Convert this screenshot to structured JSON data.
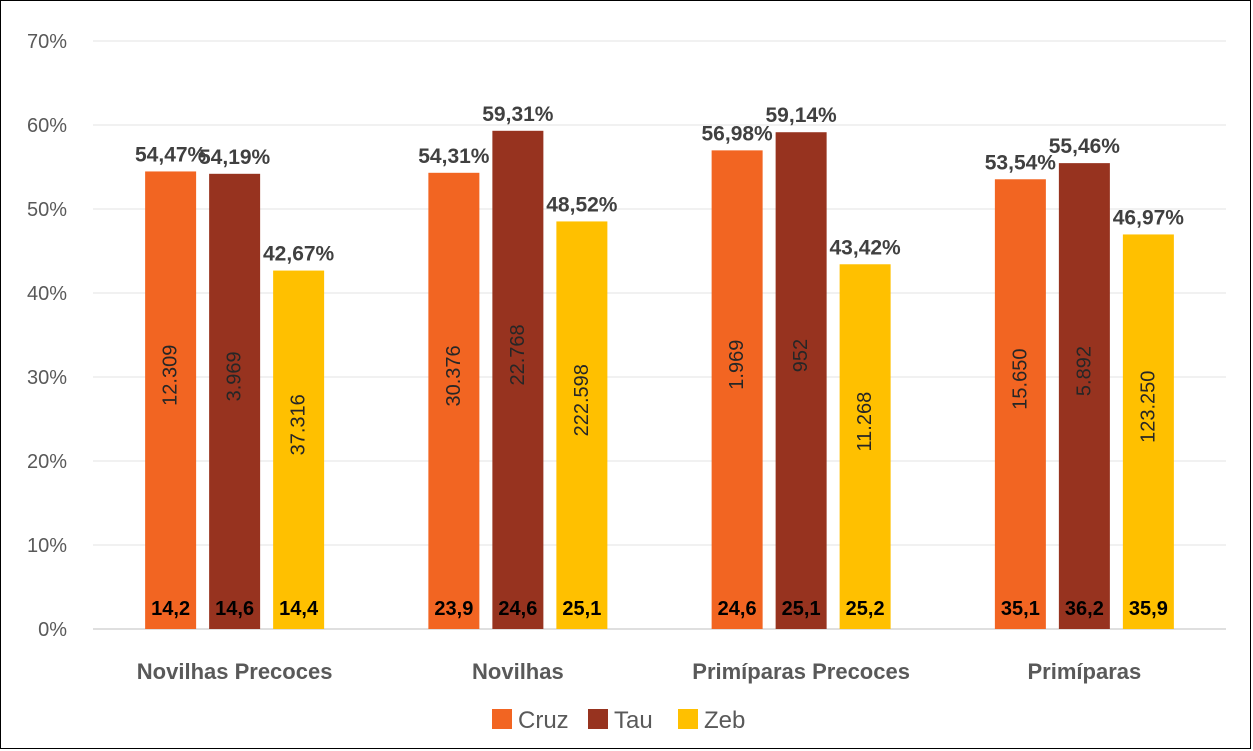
{
  "chart_data": {
    "type": "bar",
    "categories": [
      "Novilhas Precoces",
      "Novilhas",
      "Primíparas Precoces",
      "Primíparas"
    ],
    "ylim": [
      0,
      70
    ],
    "yticks": [
      "0%",
      "10%",
      "20%",
      "30%",
      "40%",
      "50%",
      "60%",
      "70%"
    ],
    "grid": true,
    "legend_position": "bottom",
    "series": [
      {
        "name": "Cruz",
        "color": "#F26522",
        "values": [
          54.47,
          54.31,
          56.98,
          53.54
        ],
        "labels": [
          "54,47%",
          "54,31%",
          "56,98%",
          "53,54%"
        ],
        "inner_labels": [
          "12.309",
          "30.376",
          "1.969",
          "15.650"
        ],
        "base_labels": [
          "14,2",
          "23,9",
          "24,6",
          "35,1"
        ]
      },
      {
        "name": "Tau",
        "color": "#97331F",
        "values": [
          54.19,
          59.31,
          59.14,
          55.46
        ],
        "labels": [
          "54,19%",
          "59,31%",
          "59,14%",
          "55,46%"
        ],
        "inner_labels": [
          "3.969",
          "22.768",
          "952",
          "5.892"
        ],
        "base_labels": [
          "14,6",
          "24,6",
          "25,1",
          "36,2"
        ]
      },
      {
        "name": "Zeb",
        "color": "#FFC000",
        "values": [
          42.67,
          48.52,
          43.42,
          46.97
        ],
        "labels": [
          "42,67%",
          "48,52%",
          "43,42%",
          "46,97%"
        ],
        "inner_labels": [
          "37.316",
          "222.598",
          "11.268",
          "123.250"
        ],
        "base_labels": [
          "14,4",
          "25,1",
          "25,2",
          "35,9"
        ]
      }
    ]
  }
}
